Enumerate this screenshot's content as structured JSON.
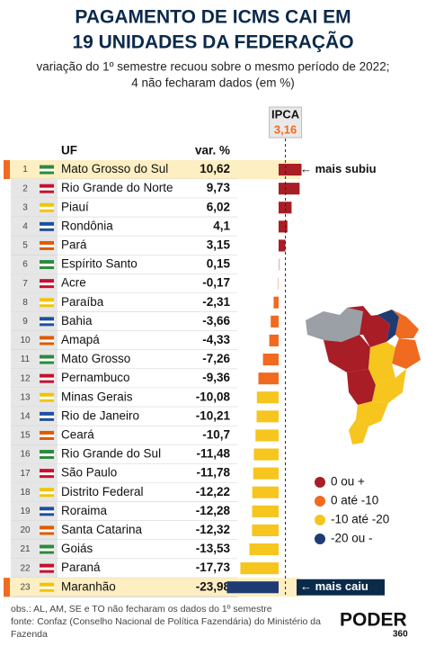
{
  "chart_data": {
    "type": "bar",
    "orientation": "horizontal",
    "title": [
      "PAGAMENTO DE ICMS CAI EM",
      "19 UNIDADES DA FEDERAÇÃO"
    ],
    "subtitle": [
      "variação do 1º semestre recuou sobre o mesmo período de 2022;",
      "4 não fecharam dados (em %)"
    ],
    "column_headers": [
      "UF",
      "var. %"
    ],
    "ranks": [
      1,
      2,
      3,
      4,
      5,
      6,
      7,
      8,
      9,
      10,
      11,
      12,
      13,
      14,
      15,
      16,
      17,
      18,
      19,
      20,
      21,
      22,
      23
    ],
    "categories": [
      "Mato Grosso do Sul",
      "Rio Grande do Norte",
      "Piauí",
      "Rondônia",
      "Pará",
      "Espírito Santo",
      "Acre",
      "Paraíba",
      "Bahia",
      "Amapá",
      "Mato Grosso",
      "Pernambuco",
      "Minas Gerais",
      "Rio de Janeiro",
      "Ceará",
      "Rio Grande do Sul",
      "São Paulo",
      "Distrito Federal",
      "Roraima",
      "Santa Catarina",
      "Goiás",
      "Paraná",
      "Maranhão"
    ],
    "values": [
      10.62,
      9.73,
      6.02,
      4.1,
      3.15,
      0.15,
      -0.17,
      -2.31,
      -3.66,
      -4.33,
      -7.26,
      -9.36,
      -10.08,
      -10.21,
      -10.7,
      -11.48,
      -11.78,
      -12.22,
      -12.28,
      -12.32,
      -13.53,
      -17.73,
      -23.98
    ],
    "value_labels": [
      "10,62",
      "9,73",
      "6,02",
      "4,1",
      "3,15",
      "0,15",
      "-0,17",
      "-2,31",
      "-3,66",
      "-4,33",
      "-7,26",
      "-9,36",
      "-10,08",
      "-10,21",
      "-10,7",
      "-11,48",
      "-11,78",
      "-12,22",
      "-12,28",
      "-12,32",
      "-13,53",
      "-17,73",
      "-23,98"
    ],
    "bar_colors": [
      "#a81d26",
      "#a81d26",
      "#a81d26",
      "#a81d26",
      "#a81d26",
      "#a81d26",
      "#f06a1f",
      "#f06a1f",
      "#f06a1f",
      "#f06a1f",
      "#f06a1f",
      "#f06a1f",
      "#f6c51e",
      "#f6c51e",
      "#f6c51e",
      "#f6c51e",
      "#f6c51e",
      "#f6c51e",
      "#f6c51e",
      "#f6c51e",
      "#f6c51e",
      "#f6c51e",
      "#1f3b73"
    ],
    "xlim": [
      -25,
      15
    ],
    "reference": {
      "label": "IPCA",
      "value": 3.16,
      "value_label": "3,16"
    },
    "annotations": [
      "← mais subiu",
      "← mais caiu"
    ],
    "legend": [
      {
        "label": "0 ou +",
        "color": "#a81d26"
      },
      {
        "label": "0 até -10",
        "color": "#f06a1f"
      },
      {
        "label": "-10 até -20",
        "color": "#f6c51e"
      },
      {
        "label": "-20 ou -",
        "color": "#1f3b73"
      }
    ],
    "notes": [
      "obs.: AL, AM, SE e TO não fecharam os dados do 1º semestre",
      "fonte: Confaz (Conselho Nacional de Política Fazendária) do Ministério da",
      "Fazenda"
    ],
    "brand": [
      "PODER",
      "360"
    ]
  }
}
